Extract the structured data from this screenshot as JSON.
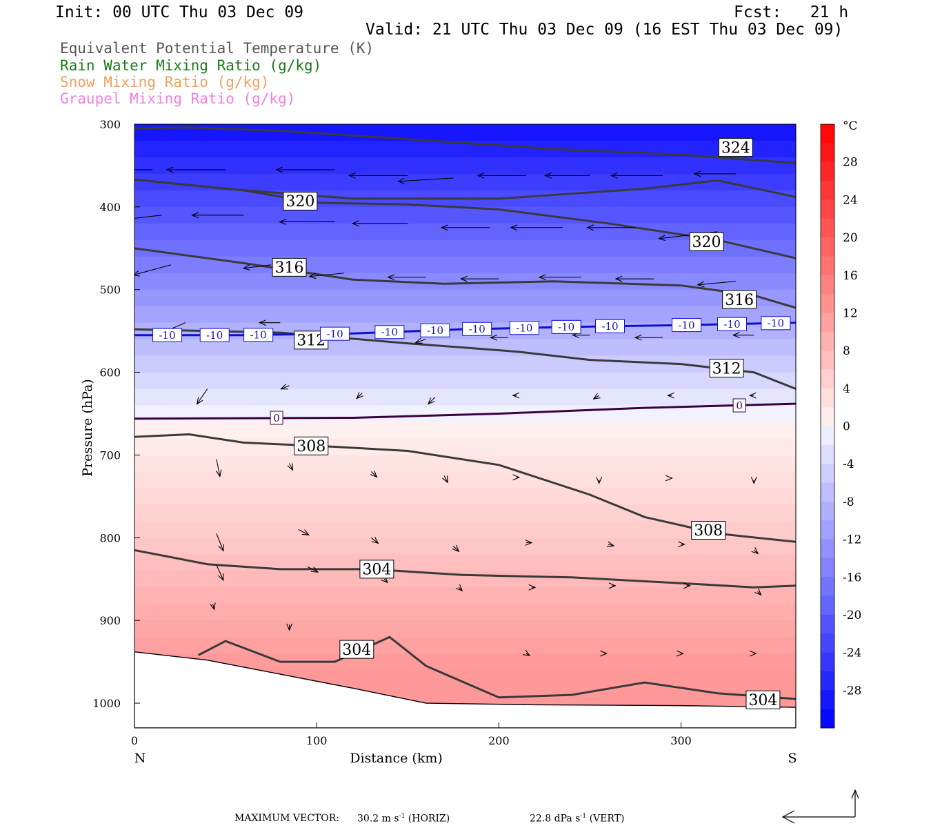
{
  "header": {
    "init": "Init: 00 UTC Thu 03 Dec 09",
    "fcst": "Fcst:   21 h",
    "valid": "Valid: 21 UTC Thu 03 Dec 09 (16 EST Thu 03 Dec 09)"
  },
  "legend": [
    {
      "label": "Equivalent Potential Temperature (K)",
      "color": "#555555"
    },
    {
      "label": "Rain Water Mixing Ratio (g/kg)",
      "color": "#1a7a1a"
    },
    {
      "label": "Snow Mixing Ratio (g/kg)",
      "color": "#f0a060"
    },
    {
      "label": "Graupel Mixing Ratio (g/kg)",
      "color": "#f080e0"
    }
  ],
  "footer": {
    "max_vector_label": "MAXIMUM VECTOR:",
    "horiz_value": "30.2 m s",
    "horiz_unit": "(HORIZ)",
    "vert_value": "22.8 dPa s",
    "vert_unit": "(VERT)",
    "exponent": "-1"
  },
  "chart_data": {
    "type": "contour",
    "xlabel": "Distance (km)",
    "ylabel": "Pressure (hPa)",
    "xlim": [
      0,
      363
    ],
    "ylim": [
      1030,
      300
    ],
    "x_ticks": [
      0,
      100,
      200,
      300
    ],
    "y_ticks": [
      300,
      400,
      500,
      600,
      700,
      800,
      900,
      1000
    ],
    "x_end_labels": {
      "left": "N",
      "right": "S"
    },
    "colorbar": {
      "unit": "°C",
      "ticks": [
        28,
        24,
        20,
        16,
        12,
        8,
        4,
        0,
        -4,
        -8,
        -12,
        -16,
        -20,
        -24,
        -28
      ],
      "range": [
        -32,
        32
      ]
    },
    "theta_e_contours": [
      {
        "label": "324",
        "points": [
          [
            0,
            305
          ],
          [
            30,
            304
          ],
          [
            80,
            308
          ],
          [
            150,
            318
          ],
          [
            230,
            330
          ],
          [
            300,
            337
          ],
          [
            363,
            347
          ]
        ]
      },
      {
        "label": "324",
        "points": [
          [
            0,
            367
          ],
          [
            50,
            378
          ],
          [
            120,
            390
          ],
          [
            200,
            390
          ],
          [
            280,
            378
          ],
          [
            320,
            368
          ],
          [
            363,
            388
          ]
        ]
      },
      {
        "label": "320",
        "points": [
          [
            0,
            367
          ],
          [
            60,
            380
          ],
          [
            100,
            395
          ],
          [
            150,
            397
          ],
          [
            200,
            403
          ],
          [
            260,
            420
          ],
          [
            320,
            440
          ],
          [
            363,
            462
          ]
        ]
      },
      {
        "label": "316",
        "points": [
          [
            0,
            450
          ],
          [
            60,
            468
          ],
          [
            120,
            488
          ],
          [
            170,
            493
          ],
          [
            230,
            490
          ],
          [
            300,
            495
          ],
          [
            340,
            507
          ],
          [
            363,
            522
          ]
        ]
      },
      {
        "label": "312",
        "points": [
          [
            0,
            548
          ],
          [
            80,
            552
          ],
          [
            150,
            565
          ],
          [
            210,
            575
          ],
          [
            250,
            585
          ],
          [
            300,
            590
          ],
          [
            340,
            600
          ],
          [
            363,
            620
          ]
        ]
      },
      {
        "label": "308",
        "points": [
          [
            0,
            678
          ],
          [
            30,
            675
          ],
          [
            60,
            685
          ],
          [
            110,
            690
          ],
          [
            150,
            695
          ],
          [
            200,
            712
          ],
          [
            250,
            748
          ],
          [
            280,
            775
          ],
          [
            320,
            795
          ],
          [
            363,
            805
          ]
        ]
      },
      {
        "label": "304",
        "points": [
          [
            0,
            815
          ],
          [
            40,
            832
          ],
          [
            80,
            838
          ],
          [
            130,
            838
          ],
          [
            180,
            845
          ],
          [
            240,
            848
          ],
          [
            300,
            855
          ],
          [
            340,
            860
          ],
          [
            363,
            858
          ]
        ]
      },
      {
        "label": "304",
        "points": [
          [
            35,
            942
          ],
          [
            50,
            925
          ],
          [
            80,
            950
          ],
          [
            110,
            950
          ],
          [
            140,
            920
          ],
          [
            160,
            955
          ],
          [
            200,
            993
          ],
          [
            240,
            990
          ],
          [
            280,
            975
          ],
          [
            320,
            988
          ],
          [
            363,
            995
          ]
        ]
      }
    ],
    "isotherms": [
      {
        "label": "-10",
        "points": [
          [
            0,
            555
          ],
          [
            60,
            555
          ],
          [
            120,
            553
          ],
          [
            180,
            548
          ],
          [
            240,
            545
          ],
          [
            300,
            543
          ],
          [
            363,
            540
          ]
        ]
      },
      {
        "label": "0",
        "points": [
          [
            0,
            656
          ],
          [
            120,
            655
          ],
          [
            200,
            650
          ],
          [
            280,
            643
          ],
          [
            363,
            638
          ]
        ]
      }
    ],
    "terrain_pressure": [
      [
        0,
        938
      ],
      [
        40,
        948
      ],
      [
        80,
        965
      ],
      [
        120,
        982
      ],
      [
        160,
        1000
      ],
      [
        220,
        1002
      ],
      [
        300,
        1003
      ],
      [
        363,
        1005
      ]
    ]
  }
}
